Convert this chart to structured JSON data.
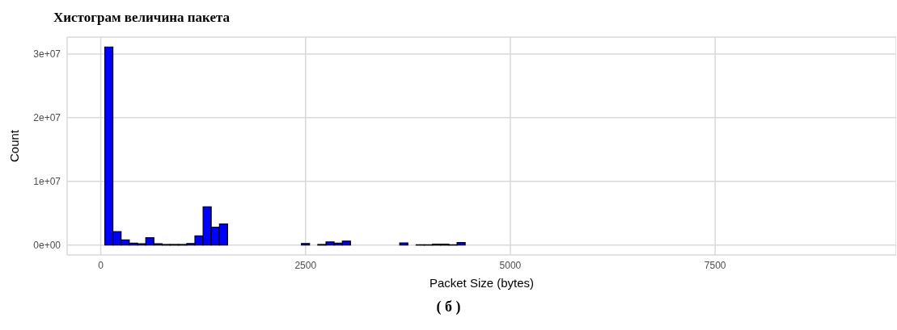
{
  "chart_data": {
    "type": "histogram",
    "title": "Хистограм величина пакета",
    "xlabel": "Packet Size (bytes)",
    "ylabel": "Count",
    "annotations": [
      "( б )"
    ],
    "bins": [
      50,
      150,
      250,
      350,
      450,
      550,
      650,
      750,
      850,
      950,
      1050,
      1150,
      1250,
      1350,
      1450,
      1550,
      1650,
      1750,
      1850,
      1950,
      2050,
      2150,
      2250,
      2350,
      2450,
      2550,
      2650,
      2750,
      2850,
      2950,
      3050,
      3150,
      3250,
      3350,
      3450,
      3550,
      3650,
      3750,
      3850,
      3950,
      4050,
      4150,
      4250,
      4350,
      4450,
      4550,
      4650,
      4750,
      4850,
      4950,
      5050,
      5150,
      5250,
      5350,
      5450,
      5550,
      5650,
      5750,
      5850,
      5950,
      6050,
      6150,
      6250,
      6350,
      6450,
      6550,
      6650,
      6750,
      6850,
      6950,
      7050,
      7150,
      7250,
      7350,
      7450,
      7550,
      7650,
      7750,
      7850,
      7950,
      8050,
      8150,
      8250,
      8350,
      8450,
      8550,
      8650,
      8750,
      8850,
      8950,
      9050,
      9150,
      9250
    ],
    "values": [
      31100000,
      2100000,
      800000,
      300000,
      200000,
      1150000,
      200000,
      100000,
      100000,
      100000,
      250000,
      1450000,
      6000000,
      2800000,
      3300000,
      0,
      0,
      0,
      0,
      0,
      0,
      0,
      0,
      0,
      250000,
      0,
      100000,
      500000,
      300000,
      630000,
      0,
      0,
      0,
      0,
      0,
      0,
      350000,
      0,
      50000,
      50000,
      150000,
      150000,
      50000,
      400000,
      0,
      0,
      0,
      0,
      0,
      0,
      0,
      0,
      0,
      0,
      0,
      0,
      0,
      0,
      0,
      0,
      0,
      0,
      0,
      0,
      0,
      0,
      0,
      0,
      0,
      0,
      0,
      0,
      0,
      0,
      0,
      0,
      0,
      0,
      0,
      0,
      0,
      0,
      0,
      0,
      0,
      0,
      0,
      0,
      0,
      0,
      0,
      0
    ],
    "color": "#0000ff",
    "xlim": [
      -410,
      9710
    ],
    "xticks": [
      0,
      2500,
      5000,
      7500
    ],
    "ylim": [
      -1550000,
      32650000
    ],
    "yticks": [
      {
        "value": 0,
        "label": "0e+00"
      },
      {
        "value": 10000000,
        "label": "1e+07"
      },
      {
        "value": 20000000,
        "label": "2e+07"
      },
      {
        "value": 30000000,
        "label": "3e+07"
      }
    ],
    "grid": true
  }
}
